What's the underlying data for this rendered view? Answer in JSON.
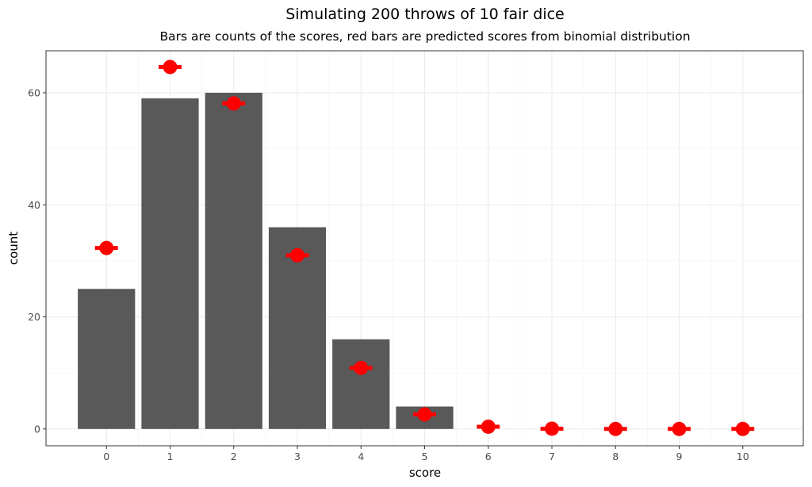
{
  "chart_data": {
    "type": "bar",
    "title": "Simulating 200 throws of 10 fair dice",
    "subtitle": "Bars are counts of the scores, red bars are predicted scores from binomial distribution",
    "xlabel": "score",
    "ylabel": "count",
    "categories": [
      "0",
      "1",
      "2",
      "3",
      "4",
      "5",
      "6",
      "7",
      "8",
      "9",
      "10"
    ],
    "series": [
      {
        "values": [
          25,
          59,
          60,
          36,
          16,
          4,
          0,
          0,
          0,
          0,
          0
        ],
        "color": "#595959"
      },
      {
        "values": [
          32.3,
          64.6,
          58.1,
          31.0,
          10.9,
          2.6,
          0.4,
          0.05,
          0.0,
          0.0,
          0.0
        ],
        "color": "#ff0000",
        "style": "point-with-horizontal-bar"
      }
    ],
    "ylim": [
      -3,
      67.5
    ],
    "xlim": [
      -0.95,
      10.95
    ],
    "yticks": [
      0,
      20,
      40,
      60
    ],
    "grid": true,
    "theme": "bw"
  }
}
